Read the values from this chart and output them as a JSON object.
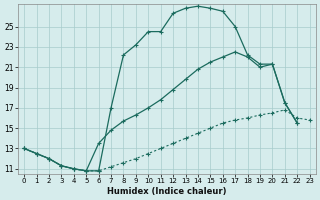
{
  "xlabel": "Humidex (Indice chaleur)",
  "xlim": [
    -0.5,
    23.5
  ],
  "ylim": [
    10.5,
    27.2
  ],
  "xticks": [
    0,
    1,
    2,
    3,
    4,
    5,
    6,
    7,
    8,
    9,
    10,
    11,
    12,
    13,
    14,
    15,
    16,
    17,
    18,
    19,
    20,
    21,
    22,
    23
  ],
  "yticks": [
    11,
    13,
    15,
    17,
    19,
    21,
    23,
    25
  ],
  "line_color": "#1b6b5e",
  "bg_color": "#d6ecec",
  "grid_color": "#a8cccc",
  "line1_x": [
    0,
    1,
    2,
    3,
    4,
    5,
    6,
    7,
    8,
    9,
    10,
    11,
    12,
    13,
    14,
    15,
    16,
    17,
    18,
    19,
    20,
    21,
    22
  ],
  "line1_y": [
    13.0,
    12.5,
    12.0,
    11.3,
    11.0,
    10.8,
    10.8,
    17.0,
    22.2,
    23.2,
    24.5,
    24.5,
    26.3,
    26.8,
    27.0,
    26.8,
    26.5,
    25.0,
    22.2,
    21.3,
    21.3,
    17.5,
    15.5
  ],
  "line2_x": [
    0,
    1,
    2,
    3,
    4,
    5,
    6,
    7,
    8,
    9,
    10,
    11,
    12,
    13,
    14,
    15,
    16,
    17,
    18,
    19,
    20,
    21,
    22
  ],
  "line2_y": [
    13.0,
    12.5,
    12.0,
    11.3,
    11.0,
    10.8,
    13.5,
    14.8,
    15.7,
    16.3,
    17.0,
    17.8,
    18.8,
    19.8,
    20.8,
    21.5,
    22.0,
    22.5,
    22.0,
    21.0,
    21.3,
    17.5,
    15.5
  ],
  "line3_x": [
    0,
    1,
    2,
    3,
    4,
    5,
    6,
    7,
    8,
    9,
    10,
    11,
    12,
    13,
    14,
    15,
    16,
    17,
    18,
    19,
    20,
    21,
    22,
    23
  ],
  "line3_y": [
    13.0,
    12.5,
    12.0,
    11.3,
    11.0,
    10.8,
    10.8,
    11.2,
    11.6,
    12.0,
    12.5,
    13.0,
    13.5,
    14.0,
    14.5,
    15.0,
    15.5,
    15.8,
    16.0,
    16.3,
    16.5,
    16.8,
    16.0,
    15.8
  ]
}
